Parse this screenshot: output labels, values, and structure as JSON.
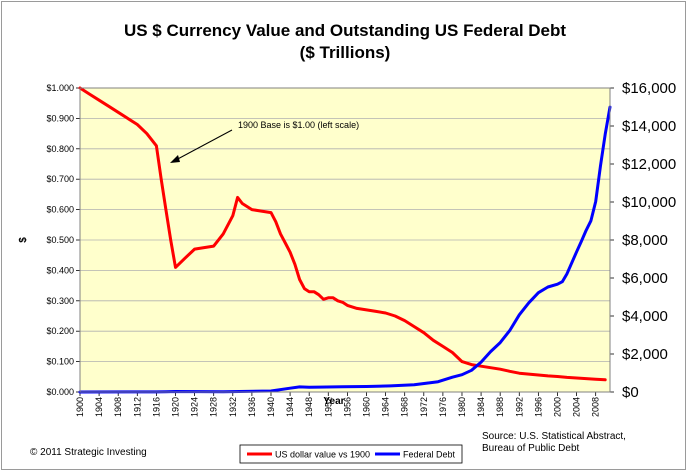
{
  "chart_data": {
    "type": "line",
    "title_line1": "US $ Currency Value and Outstanding US Federal Debt",
    "title_line2": "($ Trillions)",
    "xlabel": "Year",
    "ylabel_left": "$",
    "ylim_left": [
      0,
      1
    ],
    "ylim_right": [
      0,
      16000
    ],
    "y_ticks_left": [
      "$0.000",
      "$0.100",
      "$0.200",
      "$0.300",
      "$0.400",
      "$0.500",
      "$0.600",
      "$0.700",
      "$0.800",
      "$0.900",
      "$1.000"
    ],
    "y_ticks_right": [
      "$0",
      "$2,000",
      "$4,000",
      "$6,000",
      "$8,000",
      "$10,000",
      "$12,000",
      "$14,000",
      "$16,000"
    ],
    "x_ticks": [
      "1900",
      "1904",
      "1908",
      "1912",
      "1916",
      "1920",
      "1924",
      "1928",
      "1932",
      "1936",
      "1940",
      "1944",
      "1948",
      "1952",
      "1956",
      "1960",
      "1964",
      "1968",
      "1972",
      "1976",
      "1980",
      "1984",
      "1988",
      "1992",
      "1996",
      "2000",
      "2004",
      "2008"
    ],
    "xlim": [
      1900,
      2011
    ],
    "grid": true,
    "series": [
      {
        "name": "US dollar value vs 1900",
        "axis": "left",
        "color": "#ff0000",
        "x": [
          1900,
          1902,
          1904,
          1906,
          1908,
          1910,
          1912,
          1914,
          1916,
          1917,
          1918,
          1919,
          1920,
          1922,
          1924,
          1926,
          1928,
          1930,
          1932,
          1933,
          1934,
          1936,
          1938,
          1940,
          1941,
          1942,
          1943,
          1944,
          1945,
          1946,
          1947,
          1948,
          1949,
          1950,
          1951,
          1952,
          1953,
          1954,
          1955,
          1956,
          1957,
          1958,
          1960,
          1962,
          1964,
          1966,
          1968,
          1970,
          1972,
          1974,
          1976,
          1978,
          1980,
          1982,
          1984,
          1986,
          1988,
          1990,
          1992,
          1994,
          1996,
          1998,
          2000,
          2002,
          2004,
          2006,
          2008,
          2010
        ],
        "y": [
          1.0,
          0.98,
          0.96,
          0.94,
          0.92,
          0.9,
          0.88,
          0.85,
          0.81,
          0.7,
          0.6,
          0.5,
          0.41,
          0.44,
          0.47,
          0.475,
          0.48,
          0.52,
          0.58,
          0.64,
          0.62,
          0.6,
          0.595,
          0.59,
          0.56,
          0.52,
          0.49,
          0.46,
          0.42,
          0.37,
          0.34,
          0.33,
          0.33,
          0.32,
          0.305,
          0.31,
          0.31,
          0.3,
          0.295,
          0.285,
          0.28,
          0.275,
          0.27,
          0.265,
          0.26,
          0.25,
          0.235,
          0.215,
          0.195,
          0.17,
          0.15,
          0.13,
          0.1,
          0.09,
          0.085,
          0.08,
          0.075,
          0.068,
          0.062,
          0.059,
          0.056,
          0.053,
          0.051,
          0.048,
          0.046,
          0.044,
          0.042,
          0.04
        ]
      },
      {
        "name": "Federal Debt",
        "axis": "right",
        "color": "#0000ff",
        "x": [
          1900,
          1910,
          1916,
          1918,
          1920,
          1930,
          1940,
          1944,
          1946,
          1948,
          1950,
          1955,
          1960,
          1965,
          1970,
          1975,
          1978,
          1980,
          1982,
          1984,
          1986,
          1988,
          1990,
          1992,
          1994,
          1996,
          1998,
          2000,
          2001,
          2002,
          2004,
          2005,
          2006,
          2007,
          2008,
          2009,
          2010,
          2011
        ],
        "y": [
          2,
          3,
          3,
          12,
          26,
          16,
          51,
          200,
          271,
          252,
          257,
          274,
          291,
          322,
          381,
          543,
          780,
          908,
          1142,
          1572,
          2125,
          2602,
          3233,
          4065,
          4693,
          5225,
          5526,
          5674,
          5807,
          6228,
          7379,
          7933,
          8507,
          9008,
          10025,
          11910,
          13562,
          15000
        ]
      }
    ],
    "annotation": "1900 Base is $1.00 (left scale)",
    "copyright": "© 2011 Strategic Investing",
    "source_line1": "Source: U.S. Statistical Abstract,",
    "source_line2": "Bureau of Public Debt",
    "colors": {
      "plot_background": "#ffffcc",
      "dollar_line": "#ff0000",
      "debt_line": "#0000ff",
      "grid": "#b0b0b0"
    }
  }
}
